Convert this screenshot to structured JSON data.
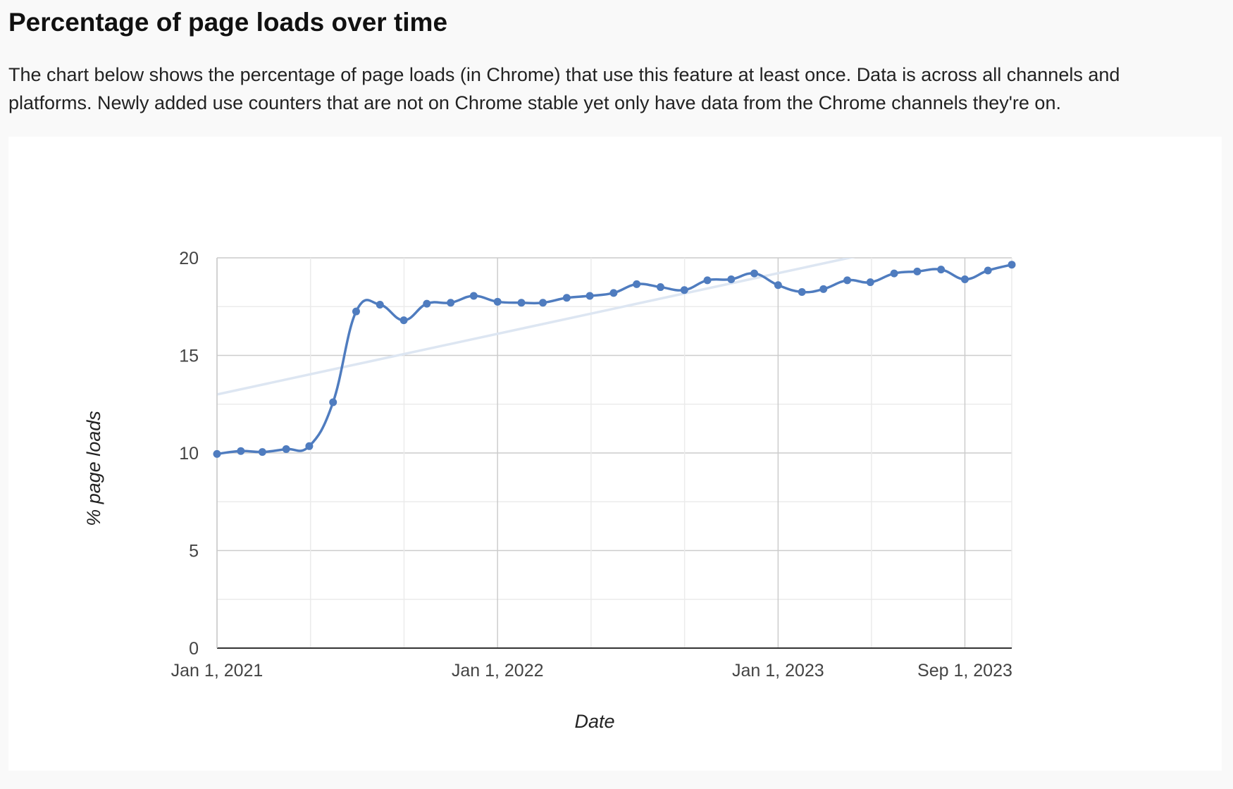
{
  "page": {
    "title": "Percentage of page loads over time",
    "description": "The chart below shows the percentage of page loads (in Chrome) that use this feature at least once. Data is across all channels and platforms. Newly added use counters that are not on Chrome stable yet only have data from the Chrome channels they're on."
  },
  "colors": {
    "series": "#4f7cbf",
    "trendline": "#dde6f2",
    "gridline_major": "#cccccc",
    "gridline_minor": "#ebebeb",
    "baseline": "#333333"
  },
  "chart_data": {
    "type": "line",
    "title": "",
    "xlabel": "Date",
    "ylabel": "% page loads",
    "ylim": [
      0,
      20
    ],
    "xlim": [
      "2021-01-01",
      "2023-11-01"
    ],
    "y_ticks": [
      0,
      5,
      10,
      15,
      20
    ],
    "x_ticks": [
      {
        "date": "2021-01-01",
        "label": "Jan 1, 2021"
      },
      {
        "date": "2022-01-01",
        "label": "Jan 1, 2022"
      },
      {
        "date": "2023-01-01",
        "label": "Jan 1, 2023"
      },
      {
        "date": "2023-09-01",
        "label": "Sep 1, 2023"
      }
    ],
    "grid": true,
    "legend": "none",
    "trendline": {
      "start": [
        "2021-01-01",
        13.0
      ],
      "end": [
        "2023-11-01",
        21.8
      ]
    },
    "series": [
      {
        "x": [
          "2021-01-01",
          "2021-02-01",
          "2021-03-01",
          "2021-04-01",
          "2021-05-01",
          "2021-06-01",
          "2021-07-01",
          "2021-08-01",
          "2021-09-01",
          "2021-10-01",
          "2021-11-01",
          "2021-12-01",
          "2022-01-01",
          "2022-02-01",
          "2022-03-01",
          "2022-04-01",
          "2022-05-01",
          "2022-06-01",
          "2022-07-01",
          "2022-08-01",
          "2022-09-01",
          "2022-10-01",
          "2022-11-01",
          "2022-12-01",
          "2023-01-01",
          "2023-02-01",
          "2023-03-01",
          "2023-04-01",
          "2023-05-01",
          "2023-06-01",
          "2023-07-01",
          "2023-08-01",
          "2023-09-01",
          "2023-10-01",
          "2023-11-01"
        ],
        "y": [
          9.95,
          10.1,
          10.05,
          10.2,
          10.35,
          12.6,
          17.25,
          17.6,
          16.8,
          17.65,
          17.7,
          18.05,
          17.75,
          17.7,
          17.7,
          17.95,
          18.05,
          18.2,
          18.65,
          18.5,
          18.35,
          18.85,
          18.9,
          19.2,
          18.6,
          18.25,
          18.4,
          18.85,
          18.75,
          19.2,
          19.3,
          19.4,
          18.9,
          19.35,
          19.65
        ]
      }
    ]
  }
}
